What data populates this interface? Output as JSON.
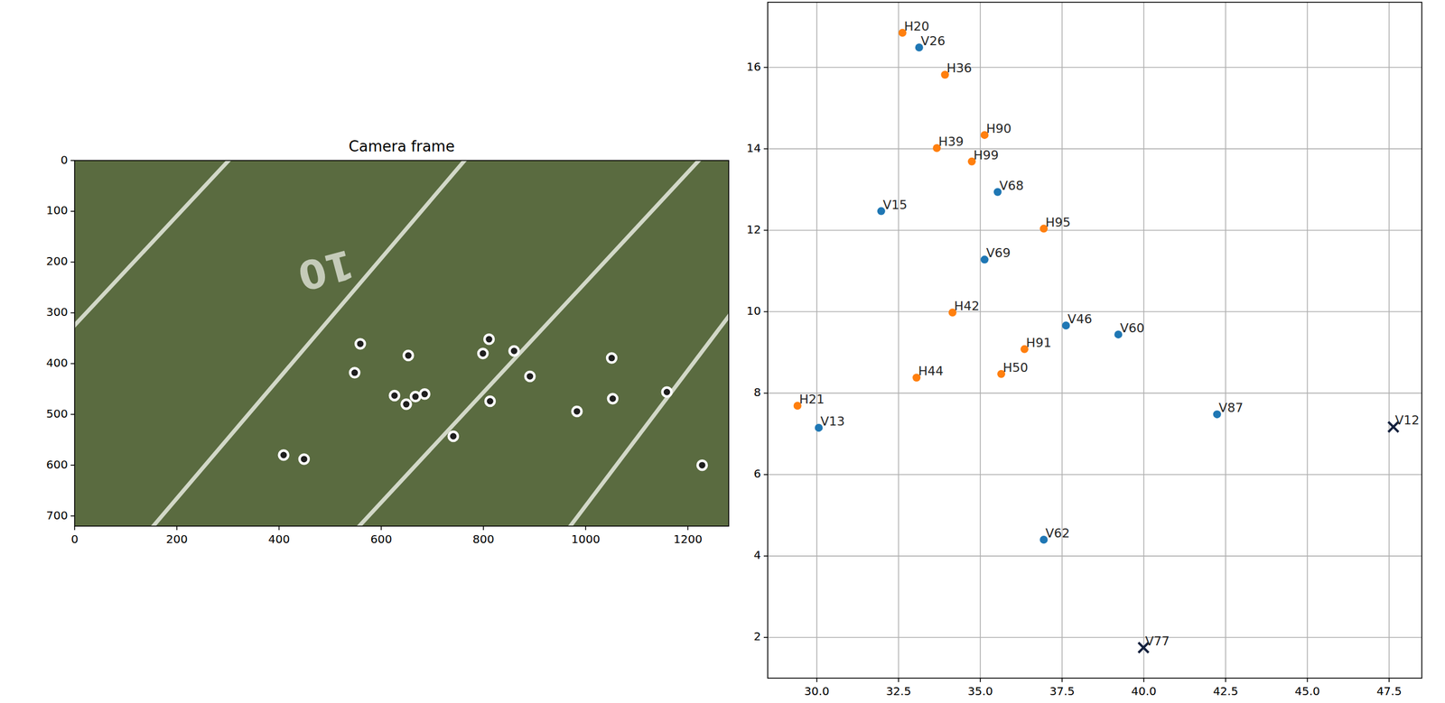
{
  "chart_data": [
    {
      "type": "image",
      "title": "Camera frame",
      "xlim": [
        0,
        1280
      ],
      "ylim": [
        720,
        0
      ],
      "xticks": [
        0,
        200,
        400,
        600,
        800,
        1000,
        1200
      ],
      "yticks": [
        0,
        100,
        200,
        300,
        400,
        500,
        600,
        700
      ],
      "grid": false,
      "annotations": [
        {
          "text": "10",
          "x": 490,
          "y": 210
        }
      ],
      "series": [
        {
          "type": "scatter",
          "marker": "o",
          "color": "#ffffff",
          "x": [
            559,
            653,
            811,
            799,
            860,
            1051,
            548,
            891,
            626,
            649,
            667,
            685,
            813,
            1053,
            1159,
            983,
            741,
            409,
            449,
            1228
          ],
          "values": [
            361,
            384,
            352,
            380,
            375,
            389,
            418,
            425,
            463,
            480,
            465,
            460,
            474,
            469,
            456,
            494,
            543,
            580,
            588,
            600
          ]
        }
      ]
    },
    {
      "type": "scatter",
      "xlim": [
        28.5,
        48.5
      ],
      "ylim": [
        1.0,
        17.6
      ],
      "xticks": [
        {
          "value": 30,
          "label": "30.0"
        },
        {
          "value": 32.5,
          "label": "32.5"
        },
        {
          "value": 35,
          "label": "35.0"
        },
        {
          "value": 37.5,
          "label": "37.5"
        },
        {
          "value": 40,
          "label": "40.0"
        },
        {
          "value": 42.5,
          "label": "42.5"
        },
        {
          "value": 45,
          "label": "45.0"
        },
        {
          "value": 47.5,
          "label": "47.5"
        }
      ],
      "yticks": [
        2,
        4,
        6,
        8,
        10,
        12,
        14,
        16
      ],
      "grid": true,
      "series": [
        {
          "color": "#ff7f0e",
          "marker": "o",
          "labels": [
            "H20",
            "H36",
            "H90",
            "H39",
            "H99",
            "H95",
            "H42",
            "H91",
            "H44",
            "H50",
            "H21"
          ],
          "x": [
            32.62,
            33.92,
            35.13,
            33.67,
            34.74,
            36.94,
            34.15,
            36.35,
            33.05,
            35.64,
            29.41
          ],
          "values": [
            16.85,
            15.82,
            14.34,
            14.02,
            13.69,
            12.04,
            9.98,
            9.08,
            8.38,
            8.47,
            7.69
          ]
        },
        {
          "color": "#1f77b4",
          "marker": "o",
          "labels": [
            "V26",
            "V68",
            "V15",
            "V69",
            "V46",
            "V60",
            "V13",
            "V87",
            "V62"
          ],
          "x": [
            33.13,
            35.53,
            31.97,
            35.13,
            37.62,
            39.22,
            30.06,
            42.24,
            36.94
          ],
          "values": [
            16.49,
            12.94,
            12.47,
            11.28,
            9.66,
            9.44,
            7.15,
            7.48,
            4.4
          ]
        },
        {
          "color": "#14213d",
          "marker": "x",
          "labels": [
            "V12",
            "V77"
          ],
          "x": [
            47.63,
            39.99
          ],
          "values": [
            7.17,
            1.75
          ]
        }
      ]
    }
  ]
}
